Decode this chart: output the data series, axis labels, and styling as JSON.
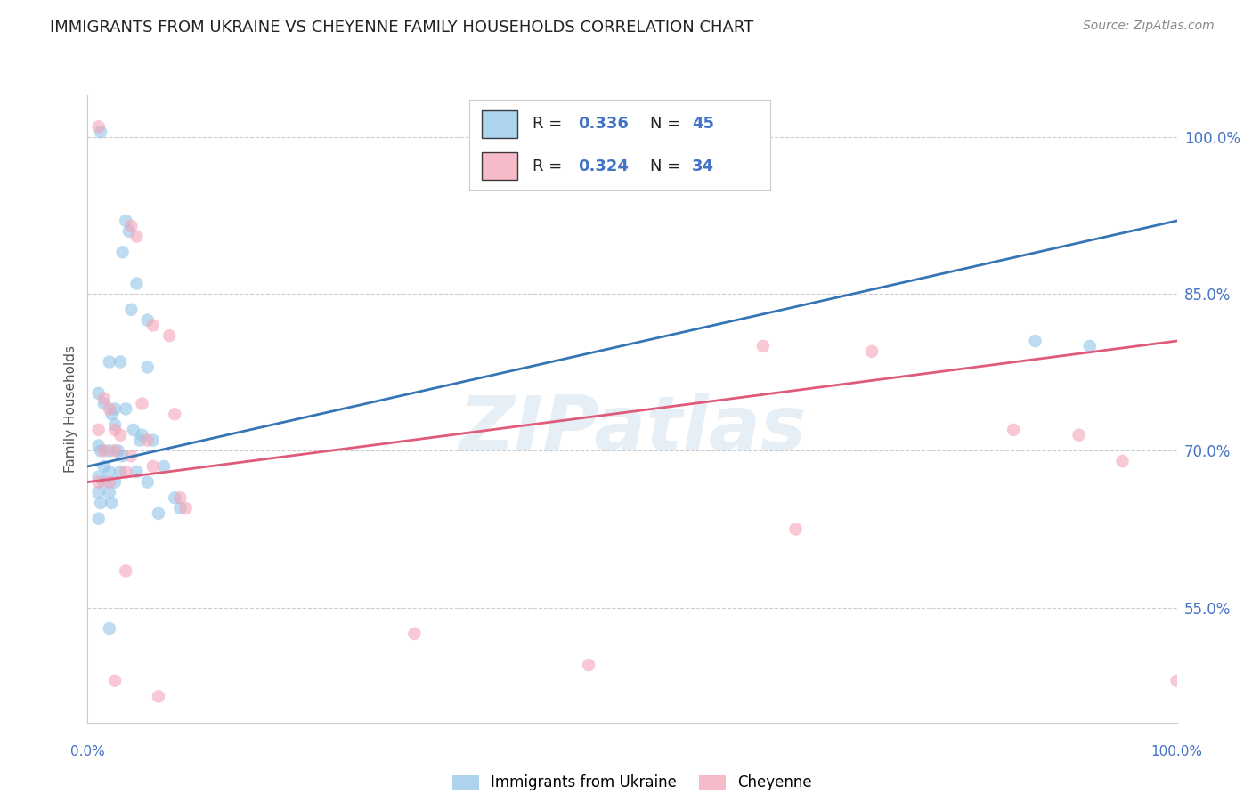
{
  "title": "IMMIGRANTS FROM UKRAINE VS CHEYENNE FAMILY HOUSEHOLDS CORRELATION CHART",
  "source": "Source: ZipAtlas.com",
  "ylabel": "Family Households",
  "watermark": "ZIPatlas",
  "yticks": [
    55.0,
    70.0,
    85.0,
    100.0
  ],
  "ytick_labels": [
    "55.0%",
    "70.0%",
    "85.0%",
    "100.0%"
  ],
  "xlim": [
    0.0,
    100.0
  ],
  "ylim": [
    44.0,
    104.0
  ],
  "blue_points": [
    [
      1.2,
      100.5
    ],
    [
      3.5,
      92.0
    ],
    [
      3.8,
      91.0
    ],
    [
      3.2,
      89.0
    ],
    [
      4.5,
      86.0
    ],
    [
      4.0,
      83.5
    ],
    [
      5.5,
      82.5
    ],
    [
      2.0,
      78.5
    ],
    [
      3.0,
      78.5
    ],
    [
      5.5,
      78.0
    ],
    [
      1.0,
      75.5
    ],
    [
      1.5,
      74.5
    ],
    [
      2.5,
      74.0
    ],
    [
      3.5,
      74.0
    ],
    [
      2.2,
      73.5
    ],
    [
      2.5,
      72.5
    ],
    [
      4.2,
      72.0
    ],
    [
      5.0,
      71.5
    ],
    [
      4.8,
      71.0
    ],
    [
      6.0,
      71.0
    ],
    [
      1.0,
      70.5
    ],
    [
      1.2,
      70.0
    ],
    [
      2.0,
      70.0
    ],
    [
      2.8,
      70.0
    ],
    [
      3.2,
      69.5
    ],
    [
      1.5,
      68.5
    ],
    [
      2.0,
      68.0
    ],
    [
      3.0,
      68.0
    ],
    [
      4.5,
      68.0
    ],
    [
      7.0,
      68.5
    ],
    [
      1.0,
      67.5
    ],
    [
      1.5,
      67.0
    ],
    [
      2.5,
      67.0
    ],
    [
      5.5,
      67.0
    ],
    [
      1.0,
      66.0
    ],
    [
      2.0,
      66.0
    ],
    [
      8.0,
      65.5
    ],
    [
      1.2,
      65.0
    ],
    [
      2.2,
      65.0
    ],
    [
      6.5,
      64.0
    ],
    [
      8.5,
      64.5
    ],
    [
      1.0,
      63.5
    ],
    [
      2.0,
      53.0
    ],
    [
      87.0,
      80.5
    ],
    [
      92.0,
      80.0
    ]
  ],
  "pink_points": [
    [
      1.0,
      101.0
    ],
    [
      4.0,
      91.5
    ],
    [
      4.5,
      90.5
    ],
    [
      6.0,
      82.0
    ],
    [
      7.5,
      81.0
    ],
    [
      62.0,
      80.0
    ],
    [
      72.0,
      79.5
    ],
    [
      1.5,
      75.0
    ],
    [
      2.0,
      74.0
    ],
    [
      5.0,
      74.5
    ],
    [
      8.0,
      73.5
    ],
    [
      1.0,
      72.0
    ],
    [
      2.5,
      72.0
    ],
    [
      3.0,
      71.5
    ],
    [
      5.5,
      71.0
    ],
    [
      1.5,
      70.0
    ],
    [
      2.5,
      70.0
    ],
    [
      4.0,
      69.5
    ],
    [
      3.5,
      68.0
    ],
    [
      6.0,
      68.5
    ],
    [
      1.0,
      67.0
    ],
    [
      2.0,
      67.0
    ],
    [
      8.5,
      65.5
    ],
    [
      9.0,
      64.5
    ],
    [
      85.0,
      72.0
    ],
    [
      91.0,
      71.5
    ],
    [
      95.0,
      69.0
    ],
    [
      65.0,
      62.5
    ],
    [
      3.5,
      58.5
    ],
    [
      30.0,
      52.5
    ],
    [
      46.0,
      49.5
    ],
    [
      2.5,
      48.0
    ],
    [
      6.5,
      46.5
    ],
    [
      100.0,
      48.0
    ]
  ],
  "blue_line": {
    "x0": 0.0,
    "y0": 68.5,
    "x1": 100.0,
    "y1": 92.0
  },
  "pink_line": {
    "x0": 0.0,
    "y0": 67.0,
    "x1": 100.0,
    "y1": 80.5
  },
  "blue_color": "#92c5e8",
  "blue_line_color": "#3575b5",
  "pink_color": "#f4a4b8",
  "pink_line_color": "#e05a7a",
  "background_color": "#ffffff",
  "grid_color": "#cccccc",
  "title_fontsize": 13,
  "tick_label_color": "#4472c4",
  "legend_text_color": "#222222",
  "legend_num_color": "#4472c4",
  "source_fontsize": 10,
  "legend_r1": "0.336",
  "legend_n1": "45",
  "legend_r2": "0.324",
  "legend_n2": "34"
}
